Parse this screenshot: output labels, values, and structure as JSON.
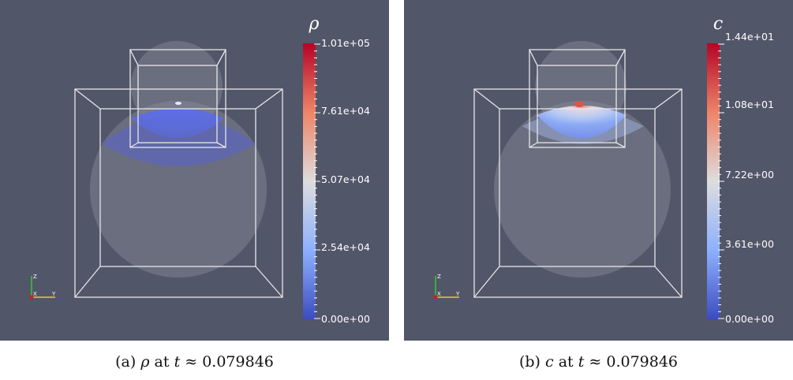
{
  "panels": [
    {
      "id": "a",
      "colorbar": {
        "title": "ρ",
        "labels": [
          "1.01e+05",
          "7.61e+04",
          "5.07e+04",
          "2.54e+04",
          "0.00e+00"
        ],
        "min": 0,
        "max": 101000
      },
      "caption": {
        "prefix": "(a)",
        "symbol": "ρ",
        "at": "at",
        "t": "t",
        "rest": "≈ 0.079846"
      },
      "axes": {
        "z": "Z",
        "x": "X",
        "y": "Y"
      }
    },
    {
      "id": "b",
      "colorbar": {
        "title": "c",
        "labels": [
          "1.44e+01",
          "1.08e+01",
          "7.22e+00",
          "3.61e+00",
          "0.00e+00"
        ],
        "min": 0,
        "max": 14.4
      },
      "caption": {
        "prefix": "(b)",
        "symbol": "c",
        "at": "at",
        "t": "t",
        "rest": "≈ 0.079846"
      },
      "axes": {
        "z": "Z",
        "x": "X",
        "y": "Y"
      }
    }
  ],
  "colors": {
    "background": "#525669",
    "colormap_low": "#3b4cc0",
    "colormap_mid": "#dddddd",
    "colormap_high": "#b40426"
  }
}
